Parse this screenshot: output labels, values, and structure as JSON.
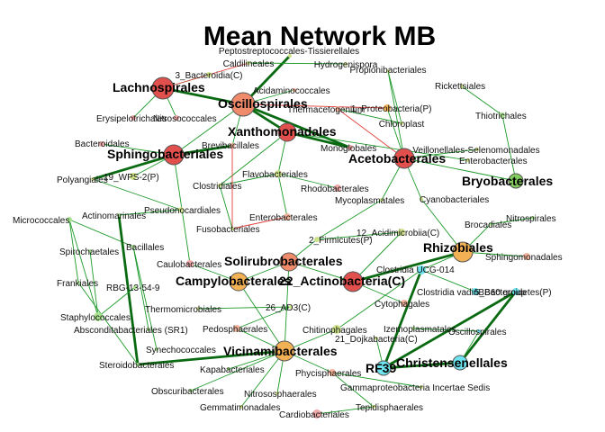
{
  "title": "Mean Network MB",
  "colors": {
    "red": "#e2504d",
    "salmon": "#ef8a6a",
    "orange": "#f2b155",
    "lightsalmon": "#f3b49b",
    "pink": "#f0a8a8",
    "yellowgreen": "#cfe38a",
    "lightgreen": "#a9e38f",
    "green": "#83cc5f",
    "cyan": "#6ee4f0",
    "edge_pos": "#1d9a2a",
    "edge_pos_strong": "#0a6a12",
    "edge_neg": "#e0403a"
  },
  "nodes": [
    {
      "id": "lachnospirales",
      "label": "Lachnospirales",
      "big": true,
      "color": "red"
    },
    {
      "id": "oscillospirales",
      "label": "Oscillospirales",
      "big": true,
      "color": "salmon"
    },
    {
      "id": "xanthomonadales",
      "label": "Xanthomonadales",
      "big": true,
      "color": "red"
    },
    {
      "id": "sphingobacteriales",
      "label": "Sphingobacteriales",
      "big": true,
      "color": "red"
    },
    {
      "id": "acetobacterales",
      "label": "Acetobacterales",
      "big": true,
      "color": "red"
    },
    {
      "id": "bryobacterales",
      "label": "Bryobacterales",
      "big": true,
      "color": "green"
    },
    {
      "id": "rhizobiales",
      "label": "Rhizobiales",
      "big": true,
      "color": "orange"
    },
    {
      "id": "solirubrobacterales",
      "label": "Solirubrobacterales",
      "big": true,
      "color": "salmon"
    },
    {
      "id": "campylobacterales",
      "label": "Campylobacterales",
      "big": true,
      "color": "orange"
    },
    {
      "id": "actinobacteria",
      "label": "22_Actinobacteria(C)",
      "big": true,
      "color": "red"
    },
    {
      "id": "vicinamibacterales",
      "label": "Vicinamibacterales",
      "big": true,
      "color": "orange"
    },
    {
      "id": "christensenellales",
      "label": "Christensenellales",
      "big": true,
      "color": "cyan"
    },
    {
      "id": "rf39",
      "label": "RF39",
      "big": true,
      "color": "cyan"
    },
    {
      "id": "peptostrep",
      "label": "Peptostreptococcales-Tissierellales",
      "big": false,
      "color": "yellowgreen"
    },
    {
      "id": "caldilineales",
      "label": "Caldilineales",
      "big": false,
      "color": "yellowgreen"
    },
    {
      "id": "hydrogenispora",
      "label": "Hydrogenispora",
      "big": false,
      "color": "yellowgreen"
    },
    {
      "id": "propionibacteriales",
      "label": "Propionibacteriales",
      "big": false,
      "color": "yellowgreen"
    },
    {
      "id": "bacteroidia",
      "label": "3_Bacteroidia(C)",
      "big": false,
      "color": "yellowgreen"
    },
    {
      "id": "rickettsiales",
      "label": "Rickettsiales",
      "big": false,
      "color": "yellowgreen"
    },
    {
      "id": "acidaminococcales",
      "label": "Acidaminococcales",
      "big": false,
      "color": "lightsalmon"
    },
    {
      "id": "erysipelotrichales",
      "label": "Erysipelotrichales",
      "big": false,
      "color": "pink"
    },
    {
      "id": "nitrosococcales",
      "label": "Nitrosococcales",
      "big": false,
      "color": "pink"
    },
    {
      "id": "thermacetogenium",
      "label": "Thermacetogenium",
      "big": false,
      "color": "lightsalmon"
    },
    {
      "id": "proteobacteria",
      "label": "1_Proteobacteria(P)",
      "big": false,
      "color": "orange"
    },
    {
      "id": "chloroplast",
      "label": "Chloroplast",
      "big": false,
      "color": "yellowgreen"
    },
    {
      "id": "thiotrichales",
      "label": "Thiotrichales",
      "big": false,
      "color": "lightgreen"
    },
    {
      "id": "bacteroidales",
      "label": "Bacteroidales",
      "big": false,
      "color": "pink"
    },
    {
      "id": "brevibacillales",
      "label": "Brevibacillales",
      "big": false,
      "color": "lightsalmon"
    },
    {
      "id": "monoglobales",
      "label": "Monoglobales",
      "big": false,
      "color": "pink"
    },
    {
      "id": "veillonellales",
      "label": "Veillonellales-Selenomonadales",
      "big": false,
      "color": "yellowgreen"
    },
    {
      "id": "enterobacterales",
      "label": "Enterobacterales",
      "big": false,
      "color": "yellowgreen"
    },
    {
      "id": "wps2",
      "label": "19_WPS-2(P)",
      "big": false,
      "color": "yellowgreen"
    },
    {
      "id": "polyangiales",
      "label": "Polyangiales",
      "big": false,
      "color": "yellowgreen"
    },
    {
      "id": "flavobacteriales",
      "label": "Flavobacteriales",
      "big": false,
      "color": "yellowgreen"
    },
    {
      "id": "clostridiales",
      "label": "Clostridiales",
      "big": false,
      "color": "yellowgreen"
    },
    {
      "id": "rhodobacterales",
      "label": "Rhodobacterales",
      "big": false,
      "color": "pink"
    },
    {
      "id": "mycoplasmatales",
      "label": "Mycoplasmatales",
      "big": false,
      "color": "yellowgreen"
    },
    {
      "id": "cyanobacteriales",
      "label": "Cyanobacteriales",
      "big": false,
      "color": "yellowgreen"
    },
    {
      "id": "micrococcales",
      "label": "Micrococcales",
      "big": false,
      "color": "lightgreen"
    },
    {
      "id": "actinomarinales",
      "label": "Actinomarinales",
      "big": false,
      "color": "lightgreen"
    },
    {
      "id": "pseudonocardiales",
      "label": "Pseudonocardiales",
      "big": false,
      "color": "yellowgreen"
    },
    {
      "id": "enterobacterales2",
      "label": "Enterobacterales",
      "big": false,
      "color": "lightsalmon"
    },
    {
      "id": "brocadiales",
      "label": "Brocadiales",
      "big": false,
      "color": "lightgreen"
    },
    {
      "id": "nitrospirales",
      "label": "Nitrospirales",
      "big": false,
      "color": "lightgreen"
    },
    {
      "id": "fusobacteriales",
      "label": "Fusobacteriales",
      "big": false,
      "color": "yellowgreen"
    },
    {
      "id": "firmicutes",
      "label": "2_Firmicutes(P)",
      "big": false,
      "color": "yellowgreen"
    },
    {
      "id": "acidimicrobiia",
      "label": "12_Acidimicrobiia(C)",
      "big": false,
      "color": "yellowgreen"
    },
    {
      "id": "spirochaetales",
      "label": "Spirochaetales",
      "big": false,
      "color": "lightgreen"
    },
    {
      "id": "bacillales",
      "label": "Bacillales",
      "big": false,
      "color": "lightgreen"
    },
    {
      "id": "sphingomonadales",
      "label": "Sphingomonadales",
      "big": false,
      "color": "lightsalmon"
    },
    {
      "id": "caulobacterales",
      "label": "Caulobacterales",
      "big": false,
      "color": "pink"
    },
    {
      "id": "clostridiaucg",
      "label": "Clostridia UCG-014",
      "big": false,
      "color": "cyan"
    },
    {
      "id": "frankiales",
      "label": "Frankiales",
      "big": false,
      "color": "lightgreen"
    },
    {
      "id": "rbg",
      "label": "RBG-13-54-9",
      "big": false,
      "color": "lightgreen"
    },
    {
      "id": "clostridiavadinbb60",
      "label": "Clostridia vadinBB60 group",
      "big": false,
      "color": "cyan"
    },
    {
      "id": "bacteroidetes",
      "label": "5_Bacteroidetes(P)",
      "big": false,
      "color": "cyan"
    },
    {
      "id": "cytophagales",
      "label": "Cytophagales",
      "big": false,
      "color": "lightsalmon"
    },
    {
      "id": "staphylococcales",
      "label": "Staphylococcales",
      "big": false,
      "color": "lightgreen"
    },
    {
      "id": "thermomicrobiales",
      "label": "Thermomicrobiales",
      "big": false,
      "color": "yellowgreen"
    },
    {
      "id": "ad3",
      "label": "26_AD3(C)",
      "big": false,
      "color": "yellowgreen"
    },
    {
      "id": "absconditabacteriales",
      "label": "Absconditabacteriales (SR1)",
      "big": false,
      "color": "lightgreen"
    },
    {
      "id": "pedosphaerales",
      "label": "Pedosphaerales",
      "big": false,
      "color": "lightsalmon"
    },
    {
      "id": "chitinophagales",
      "label": "Chitinophagales",
      "big": false,
      "color": "yellowgreen"
    },
    {
      "id": "izemoplasmatales",
      "label": "Izemoplasmatales",
      "big": false,
      "color": "lightgreen"
    },
    {
      "id": "oscillospirales2",
      "label": "Oscillospirales",
      "big": false,
      "color": "cyan"
    },
    {
      "id": "synechococcales",
      "label": "Synechococcales",
      "big": false,
      "color": "lightgreen"
    },
    {
      "id": "dojkabacteria",
      "label": "21_Dojkabacteria(C)",
      "big": false,
      "color": "yellowgreen"
    },
    {
      "id": "steroidobacterales",
      "label": "Steroidobacterales",
      "big": false,
      "color": "lightgreen"
    },
    {
      "id": "kapabacteriales",
      "label": "Kapabacteriales",
      "big": false,
      "color": "lightgreen"
    },
    {
      "id": "phycisphaerales",
      "label": "Phycisphaerales",
      "big": false,
      "color": "lightsalmon"
    },
    {
      "id": "obscuribacterales",
      "label": "Obscuribacterales",
      "big": false,
      "color": "lightgreen"
    },
    {
      "id": "gammaproteobacteria",
      "label": "Gammaproteobacteria Incertae Sedis",
      "big": false,
      "color": "yellowgreen"
    },
    {
      "id": "nitrososphaerales",
      "label": "Nitrososphaerales",
      "big": false,
      "color": "yellowgreen"
    },
    {
      "id": "gemmatimonadales",
      "label": "Gemmatimonadales",
      "big": false,
      "color": "yellowgreen"
    },
    {
      "id": "tepidisphaerales",
      "label": "Tepidisphaerales",
      "big": false,
      "color": "yellowgreen"
    },
    {
      "id": "cardiobacteriales",
      "label": "Cardiobacteriales",
      "big": false,
      "color": "pink"
    }
  ],
  "edges": [
    [
      "lachnospirales",
      "oscillospirales",
      "pos_strong"
    ],
    [
      "lachnospirales",
      "bacteroidia",
      "pos"
    ],
    [
      "lachnospirales",
      "erysipelotrichales",
      "pos"
    ],
    [
      "lachnospirales",
      "nitrosococcales",
      "pos"
    ],
    [
      "oscillospirales",
      "xanthomonadales",
      "pos_strong"
    ],
    [
      "oscillospirales",
      "peptostrep",
      "pos_strong"
    ],
    [
      "oscillospirales",
      "acidaminococcales",
      "pos"
    ],
    [
      "oscillospirales",
      "monoglobales",
      "pos_strong"
    ],
    [
      "oscillospirales",
      "proteobacteria",
      "neg"
    ],
    [
      "oscillospirales",
      "brevibacillales",
      "pos"
    ],
    [
      "oscillospirales",
      "sphingobacteriales",
      "pos"
    ],
    [
      "xanthomonadales",
      "monoglobales",
      "pos_strong"
    ],
    [
      "xanthomonadales",
      "clostridiales",
      "pos"
    ],
    [
      "xanthomonadales",
      "flavobacteriales",
      "pos"
    ],
    [
      "sphingobacteriales",
      "brevibacillales",
      "pos_strong"
    ],
    [
      "sphingobacteriales",
      "polyangiales",
      "pos_strong"
    ],
    [
      "sphingobacteriales",
      "bacteroidales",
      "pos"
    ],
    [
      "sphingobacteriales",
      "caulobacterales",
      "pos"
    ],
    [
      "sphingobacteriales",
      "wps2",
      "pos"
    ],
    [
      "acetobacterales",
      "proteobacteria",
      "pos"
    ],
    [
      "acetobacterales",
      "thermacetogenium",
      "neg"
    ],
    [
      "acetobacterales",
      "cyanobacteriales",
      "pos"
    ],
    [
      "acetobacterales",
      "veillonellales",
      "pos"
    ],
    [
      "acetobacterales",
      "bryobacterales",
      "pos"
    ],
    [
      "acetobacterales",
      "propionibacteriales",
      "pos"
    ],
    [
      "acetobacterales",
      "mycoplasmatales",
      "pos"
    ],
    [
      "bryobacterales",
      "thiotrichales",
      "pos"
    ],
    [
      "rhizobiales",
      "actinobacteria",
      "pos_strong"
    ],
    [
      "rhizobiales",
      "sphingomonadales",
      "pos"
    ],
    [
      "rhizobiales",
      "brocadiales",
      "pos"
    ],
    [
      "rhizobiales",
      "cyanobacteriales",
      "pos"
    ],
    [
      "rhizobiales",
      "clostridiaucg",
      "pos"
    ],
    [
      "solirubrobacterales",
      "campylobacterales",
      "pos"
    ],
    [
      "solirubrobacterales",
      "actinobacteria",
      "pos"
    ],
    [
      "solirubrobacterales",
      "vicinamibacterales",
      "pos"
    ],
    [
      "solirubrobacterales",
      "firmicutes",
      "pos"
    ],
    [
      "campylobacterales",
      "vicinamibacterales",
      "pos"
    ],
    [
      "campylobacterales",
      "caulobacterales",
      "pos"
    ],
    [
      "actinobacteria",
      "acidimicrobiia",
      "pos"
    ],
    [
      "actinobacteria",
      "cytophagales",
      "pos"
    ],
    [
      "vicinamibacterales",
      "chitinophagales",
      "pos"
    ],
    [
      "vicinamibacterales",
      "steroidobacterales",
      "pos_strong"
    ],
    [
      "vicinamibacterales",
      "nitrososphaerales",
      "pos"
    ],
    [
      "vicinamibacterales",
      "phycisphaerales",
      "pos"
    ],
    [
      "vicinamibacterales",
      "pedosphaerales",
      "pos"
    ],
    [
      "vicinamibacterales",
      "kapabacteriales",
      "pos"
    ],
    [
      "vicinamibacterales",
      "obscuribacterales",
      "pos"
    ],
    [
      "vicinamibacterales",
      "gemmatimonadales",
      "pos"
    ],
    [
      "christensenellales",
      "rf39",
      "pos_strong"
    ],
    [
      "christensenellales",
      "bacteroidetes",
      "pos_strong"
    ],
    [
      "christensenellales",
      "oscillospirales2",
      "pos"
    ],
    [
      "rf39",
      "clostridiaucg",
      "pos_strong"
    ],
    [
      "rf39",
      "bacteroidetes",
      "pos_strong"
    ],
    [
      "rf39",
      "dojkabacteria",
      "pos"
    ],
    [
      "clostridiaucg",
      "clostridiavadinbb60",
      "pos"
    ],
    [
      "clostridiaucg",
      "chitinophagales",
      "pos"
    ],
    [
      "micrococcales",
      "bacillales",
      "pos"
    ],
    [
      "micrococcales",
      "staphylococcales",
      "pos"
    ],
    [
      "micrococcales",
      "frankiales",
      "pos"
    ],
    [
      "actinomarinales",
      "steroidobacterales",
      "pos_strong"
    ],
    [
      "actinomarinales",
      "pseudonocardiales",
      "pos"
    ],
    [
      "spirochaetales",
      "staphylococcales",
      "pos"
    ],
    [
      "bacillales",
      "synechococcales",
      "pos"
    ],
    [
      "bacillales",
      "absconditabacteriales",
      "pos"
    ],
    [
      "frankiales",
      "steroidobacterales",
      "pos"
    ],
    [
      "rbg",
      "staphylococcales",
      "pos"
    ],
    [
      "flavobacteriales",
      "enterobacterales2",
      "pos"
    ],
    [
      "flavobacteriales",
      "rhodobacterales",
      "pos"
    ],
    [
      "flavobacteriales",
      "clostridiales",
      "pos"
    ],
    [
      "enterobacterales2",
      "fusobacteriales",
      "neg"
    ],
    [
      "brevibacillales",
      "fusobacteriales",
      "neg"
    ],
    [
      "firmicutes",
      "acidimicrobiia",
      "pos"
    ],
    [
      "thermomicrobiales",
      "ad3",
      "pos"
    ],
    [
      "ad3",
      "pedosphaerales",
      "pos"
    ],
    [
      "izemoplasmatales",
      "oscillospirales2",
      "pos"
    ],
    [
      "phycisphaerales",
      "gammaproteobacteria",
      "pos"
    ],
    [
      "phycisphaerales",
      "tepidisphaerales",
      "pos"
    ],
    [
      "cardiobacteriales",
      "tepidisphaerales",
      "pos"
    ],
    [
      "xanthomonadales",
      "enterobacterales",
      "pos"
    ],
    [
      "thermacetogenium",
      "chloroplast",
      "pos"
    ],
    [
      "rickettsiales",
      "thiotrichales",
      "pos"
    ],
    [
      "propionibacteriales",
      "chloroplast",
      "pos"
    ],
    [
      "hydrogenispora",
      "caldilineales",
      "pos"
    ],
    [
      "nitrospirales",
      "brocadiales",
      "pos"
    ],
    [
      "polyangiales",
      "pseudonocardiales",
      "pos"
    ],
    [
      "clostridiales",
      "fusobacteriales",
      "pos"
    ],
    [
      "mycoplasmatales",
      "firmicutes",
      "pos"
    ],
    [
      "caldilineales",
      "lachnospirales",
      "neg"
    ]
  ]
}
